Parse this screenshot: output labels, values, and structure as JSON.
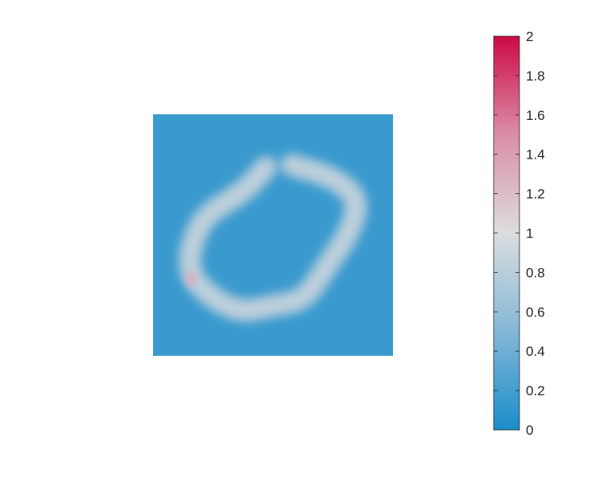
{
  "chart_data": {
    "type": "heatmap",
    "title": "",
    "xlabel": "",
    "ylabel": "",
    "axes_visible": false,
    "colormap": {
      "name": "blue-gray-crimson diverging",
      "stops": [
        {
          "value": 0.0,
          "color": "#1a8dcb"
        },
        {
          "value": 0.5,
          "color": "#84b7d6"
        },
        {
          "value": 1.0,
          "color": "#dcdddf"
        },
        {
          "value": 1.5,
          "color": "#da8ea6"
        },
        {
          "value": 2.0,
          "color": "#cc0a45"
        }
      ]
    },
    "background_value": 0.15,
    "colorbar": {
      "location": "right",
      "range": [
        0,
        2
      ],
      "tick_labels": [
        "0",
        "0.2",
        "0.4",
        "0.6",
        "0.8",
        "1",
        "1.2",
        "1.4",
        "1.6",
        "1.8",
        "2"
      ]
    },
    "field_description": "Mostly low-valued field with an open ring-shaped ridge of values near 0.8-1.0; the ring is broken at the lower right and has a small local peak of about 1.3 at its lower-left part.",
    "ring_ridge": {
      "value": 0.85,
      "points": [
        [
          0.47,
          0.22
        ],
        [
          0.38,
          0.32
        ],
        [
          0.21,
          0.42
        ],
        [
          0.15,
          0.57
        ],
        [
          0.16,
          0.68
        ],
        [
          0.26,
          0.77
        ],
        [
          0.37,
          0.82
        ],
        [
          0.51,
          0.79
        ],
        [
          0.63,
          0.77
        ],
        [
          0.73,
          0.62
        ],
        [
          0.82,
          0.49
        ],
        [
          0.86,
          0.35
        ],
        [
          0.75,
          0.26
        ],
        [
          0.58,
          0.21
        ]
      ]
    },
    "peak": {
      "x": 0.16,
      "y": 0.68,
      "value": 1.3
    }
  }
}
